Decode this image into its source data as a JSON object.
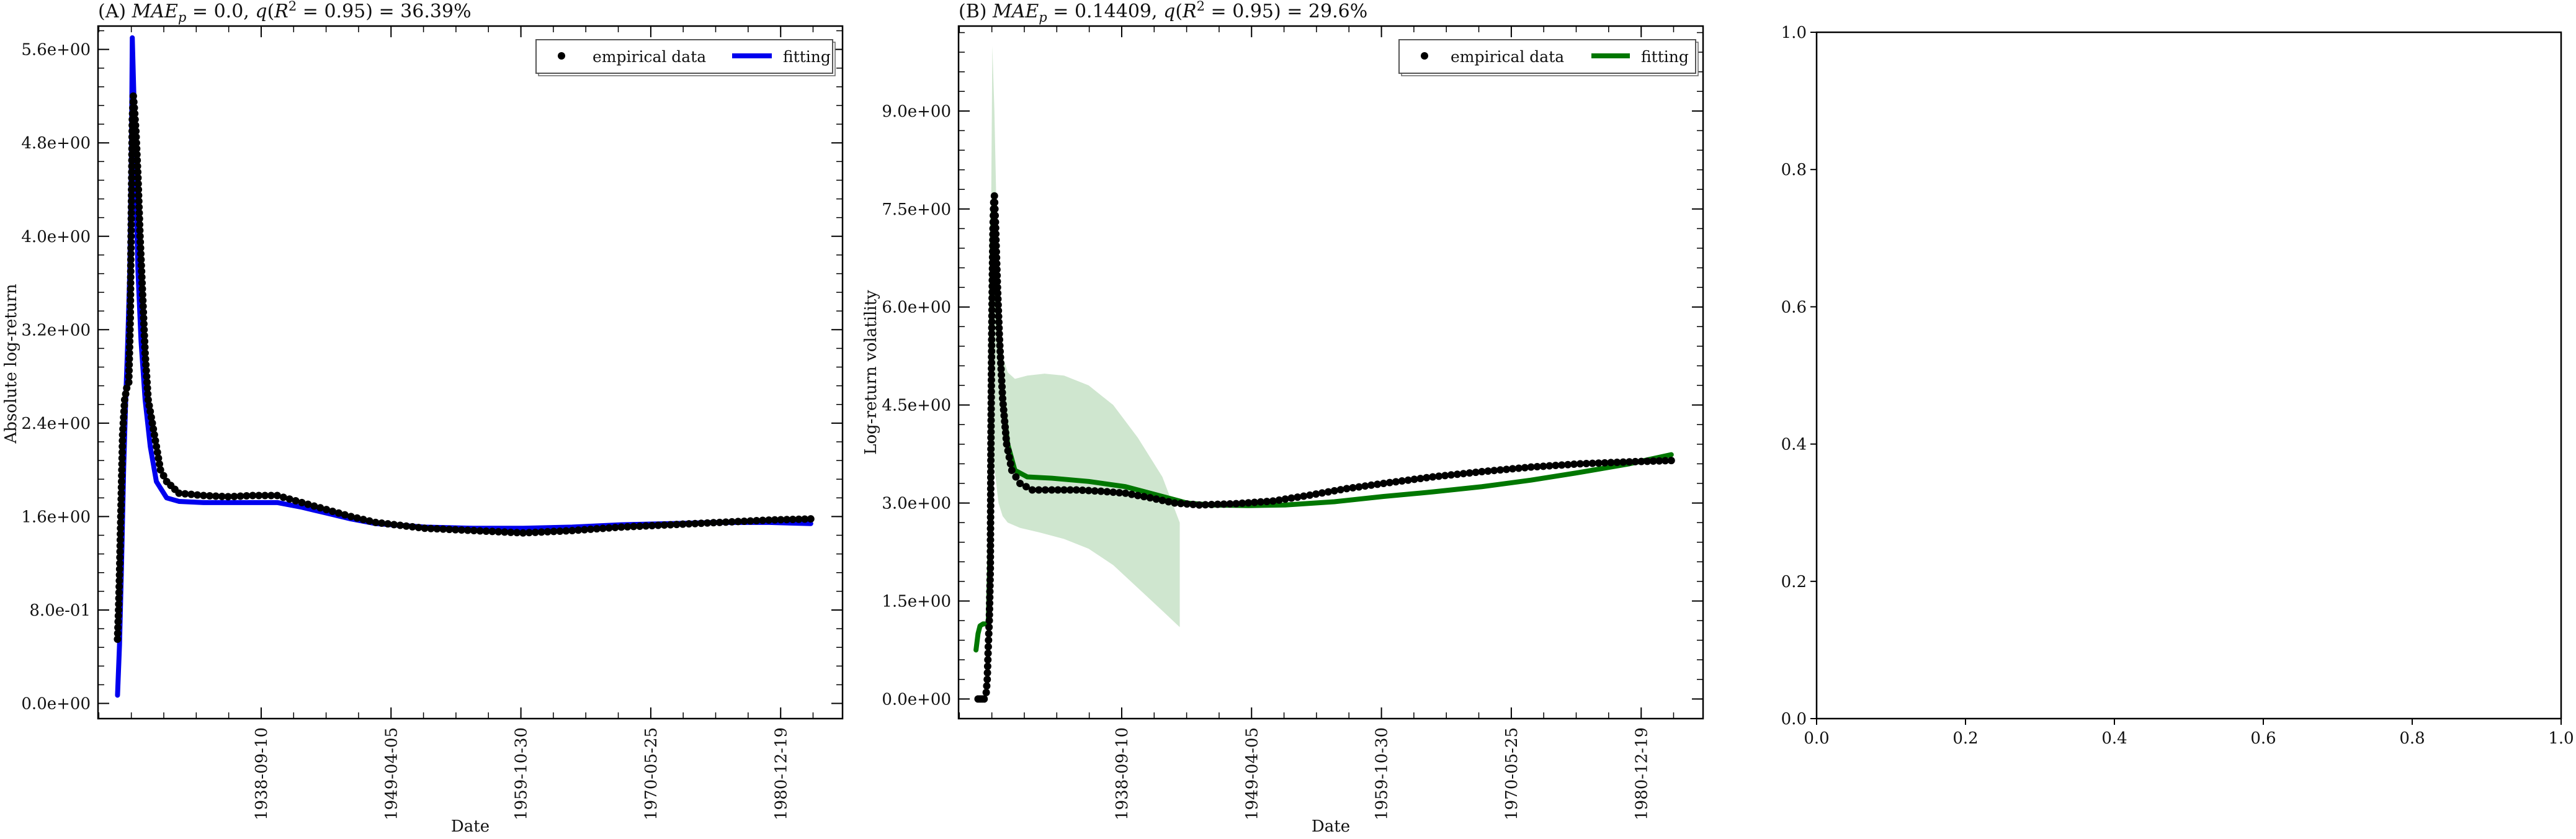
{
  "figure": {
    "background": "#ffffff",
    "panel_a_title": "(A) MAE_p = 0.0, q(R² = 0.95) = 36.39%",
    "panel_b_title": "(B) MAE_p = 0.14409, q(R² = 0.95) = 29.6%"
  },
  "chart_data": [
    {
      "type": "line",
      "title": "(A) MAE_p = 0.0, q(R² = 0.95) = 36.39%",
      "xlabel": "Date",
      "ylabel": "Absolute log-return",
      "x_ticks": [
        "1938-09-10",
        "1949-04-05",
        "1959-10-30",
        "1970-05-25",
        "1980-12-19"
      ],
      "y_ticks": [
        "0.0e+00",
        "8.0e-01",
        "1.6e+00",
        "2.4e+00",
        "3.2e+00",
        "4.0e+00",
        "4.8e+00",
        "5.6e+00"
      ],
      "ylim": [
        -0.13,
        5.8
      ],
      "xlim": [
        "1925-06-01",
        "1986-01-01"
      ],
      "grid": false,
      "legend_position": "top-right",
      "series": [
        {
          "name": "empirical data",
          "style": "scatter",
          "color": "#000000",
          "points": [
            [
              "1927-01-01",
              0.55
            ],
            [
              "1927-02-01",
              0.8
            ],
            [
              "1927-03-01",
              1.1
            ],
            [
              "1927-04-01",
              1.5
            ],
            [
              "1927-05-01",
              1.9
            ],
            [
              "1927-06-01",
              2.3
            ],
            [
              "1927-08-01",
              2.6
            ],
            [
              "1927-10-01",
              2.7
            ],
            [
              "1927-12-01",
              2.75
            ],
            [
              "1928-01-15",
              3.3
            ],
            [
              "1928-02-15",
              4.2
            ],
            [
              "1928-03-15",
              5.0
            ],
            [
              "1928-04-15",
              5.2
            ],
            [
              "1928-05-15",
              5.1
            ],
            [
              "1928-07-01",
              4.9
            ],
            [
              "1928-09-01",
              4.5
            ],
            [
              "1928-11-01",
              4.0
            ],
            [
              "1929-01-01",
              3.6
            ],
            [
              "1929-04-01",
              3.0
            ],
            [
              "1929-07-01",
              2.6
            ],
            [
              "1930-01-01",
              2.3
            ],
            [
              "1930-07-01",
              2.0
            ],
            [
              "1931-01-01",
              1.9
            ],
            [
              "1932-01-01",
              1.8
            ],
            [
              "1934-01-01",
              1.78
            ],
            [
              "1936-01-01",
              1.77
            ],
            [
              "1938-01-01",
              1.78
            ],
            [
              "1940-01-01",
              1.78
            ],
            [
              "1942-01-01",
              1.72
            ],
            [
              "1944-01-01",
              1.66
            ],
            [
              "1946-01-01",
              1.6
            ],
            [
              "1948-01-01",
              1.55
            ],
            [
              "1952-01-01",
              1.5
            ],
            [
              "1956-01-01",
              1.48
            ],
            [
              "1960-01-01",
              1.46
            ],
            [
              "1964-01-01",
              1.48
            ],
            [
              "1968-01-01",
              1.51
            ],
            [
              "1972-01-01",
              1.53
            ],
            [
              "1976-01-01",
              1.55
            ],
            [
              "1980-01-01",
              1.57
            ],
            [
              "1983-06-01",
              1.58
            ]
          ]
        },
        {
          "name": "fitting",
          "style": "line",
          "color": "#0000ee",
          "points": [
            [
              "1927-01-01",
              0.07
            ],
            [
              "1927-03-01",
              0.5
            ],
            [
              "1927-05-01",
              1.2
            ],
            [
              "1927-07-01",
              2.0
            ],
            [
              "1927-09-01",
              2.6
            ],
            [
              "1927-11-01",
              3.1
            ],
            [
              "1928-01-01",
              3.7
            ],
            [
              "1928-02-15",
              4.6
            ],
            [
              "1928-03-15",
              5.7
            ],
            [
              "1928-05-01",
              5.2
            ],
            [
              "1928-07-01",
              4.4
            ],
            [
              "1928-09-01",
              3.7
            ],
            [
              "1928-12-01",
              3.1
            ],
            [
              "1929-04-01",
              2.6
            ],
            [
              "1929-09-01",
              2.2
            ],
            [
              "1930-03-01",
              1.9
            ],
            [
              "1931-01-01",
              1.76
            ],
            [
              "1932-01-01",
              1.73
            ],
            [
              "1934-01-01",
              1.72
            ],
            [
              "1936-01-01",
              1.72
            ],
            [
              "1938-01-01",
              1.72
            ],
            [
              "1940-01-01",
              1.72
            ],
            [
              "1942-01-01",
              1.68
            ],
            [
              "1944-01-01",
              1.63
            ],
            [
              "1946-01-01",
              1.58
            ],
            [
              "1948-01-01",
              1.54
            ],
            [
              "1952-01-01",
              1.51
            ],
            [
              "1956-01-01",
              1.5
            ],
            [
              "1960-01-01",
              1.5
            ],
            [
              "1964-01-01",
              1.51
            ],
            [
              "1968-01-01",
              1.53
            ],
            [
              "1972-01-01",
              1.54
            ],
            [
              "1976-01-01",
              1.55
            ],
            [
              "1980-01-01",
              1.55
            ],
            [
              "1983-06-01",
              1.54
            ]
          ]
        }
      ]
    },
    {
      "type": "line",
      "title": "(B) MAE_p = 0.14409, q(R² = 0.95) = 29.6%",
      "xlabel": "Date",
      "ylabel": "Log-return volatility",
      "x_ticks": [
        "1938-09-10",
        "1949-04-05",
        "1959-10-30",
        "1970-05-25",
        "1980-12-19"
      ],
      "y_ticks": [
        "0.0e+00",
        "1.5e+00",
        "3.0e+00",
        "4.5e+00",
        "6.0e+00",
        "7.5e+00",
        "9.0e+00"
      ],
      "ylim": [
        -0.3,
        10.3
      ],
      "xlim": [
        "1925-06-01",
        "1986-01-01"
      ],
      "grid": false,
      "legend_position": "top-right",
      "series": [
        {
          "name": "empirical data",
          "style": "scatter",
          "color": "#000000",
          "points": [
            [
              "1927-01-01",
              0.0
            ],
            [
              "1927-03-01",
              0.0
            ],
            [
              "1927-05-01",
              0.0
            ],
            [
              "1927-07-01",
              0.0
            ],
            [
              "1927-09-01",
              0.1
            ],
            [
              "1927-10-01",
              0.3
            ],
            [
              "1927-11-01",
              0.8
            ],
            [
              "1927-12-01",
              1.2
            ],
            [
              "1928-01-01",
              2.0
            ],
            [
              "1928-01-20",
              4.0
            ],
            [
              "1928-02-10",
              5.5
            ],
            [
              "1928-03-01",
              6.5
            ],
            [
              "1928-03-20",
              7.2
            ],
            [
              "1928-04-10",
              7.6
            ],
            [
              "1928-05-01",
              7.7
            ],
            [
              "1928-06-01",
              7.3
            ],
            [
              "1928-08-01",
              6.3
            ],
            [
              "1928-10-01",
              5.5
            ],
            [
              "1929-01-01",
              4.6
            ],
            [
              "1929-05-01",
              3.9
            ],
            [
              "1929-10-01",
              3.5
            ],
            [
              "1930-06-01",
              3.3
            ],
            [
              "1931-06-01",
              3.2
            ],
            [
              "1933-01-01",
              3.2
            ],
            [
              "1935-01-01",
              3.2
            ],
            [
              "1937-01-01",
              3.18
            ],
            [
              "1939-01-01",
              3.15
            ],
            [
              "1941-01-01",
              3.08
            ],
            [
              "1943-01-01",
              3.0
            ],
            [
              "1945-01-01",
              2.97
            ],
            [
              "1948-01-01",
              2.99
            ],
            [
              "1951-01-01",
              3.03
            ],
            [
              "1954-01-01",
              3.12
            ],
            [
              "1957-01-01",
              3.22
            ],
            [
              "1960-01-01",
              3.3
            ],
            [
              "1964-01-01",
              3.4
            ],
            [
              "1968-01-01",
              3.48
            ],
            [
              "1972-01-01",
              3.55
            ],
            [
              "1976-01-01",
              3.6
            ],
            [
              "1980-01-01",
              3.63
            ],
            [
              "1983-06-01",
              3.65
            ]
          ]
        },
        {
          "name": "fitting",
          "style": "line",
          "color": "#007700",
          "points": [
            [
              "1926-11-01",
              0.75
            ],
            [
              "1927-01-01",
              1.0
            ],
            [
              "1927-03-01",
              1.12
            ],
            [
              "1927-06-01",
              1.15
            ],
            [
              "1927-09-01",
              1.15
            ],
            [
              "1927-11-01",
              1.15
            ],
            [
              "1928-01-01",
              2.5
            ],
            [
              "1928-02-01",
              5.5
            ],
            [
              "1928-03-01",
              7.0
            ],
            [
              "1928-04-01",
              7.5
            ],
            [
              "1928-05-01",
              7.6
            ],
            [
              "1928-07-01",
              6.6
            ],
            [
              "1928-09-01",
              5.8
            ],
            [
              "1929-01-01",
              4.6
            ],
            [
              "1929-06-01",
              3.9
            ],
            [
              "1930-01-01",
              3.5
            ],
            [
              "1931-01-01",
              3.4
            ],
            [
              "1933-01-01",
              3.38
            ],
            [
              "1936-01-01",
              3.33
            ],
            [
              "1939-01-01",
              3.25
            ],
            [
              "1942-01-01",
              3.1
            ],
            [
              "1944-01-01",
              3.0
            ],
            [
              "1946-01-01",
              2.97
            ],
            [
              "1949-01-01",
              2.96
            ],
            [
              "1952-01-01",
              2.97
            ],
            [
              "1956-01-01",
              3.02
            ],
            [
              "1960-01-01",
              3.1
            ],
            [
              "1964-01-01",
              3.17
            ],
            [
              "1968-01-01",
              3.25
            ],
            [
              "1972-01-01",
              3.35
            ],
            [
              "1976-01-01",
              3.47
            ],
            [
              "1980-01-01",
              3.6
            ],
            [
              "1983-06-01",
              3.74
            ]
          ]
        },
        {
          "name": "",
          "style": "band",
          "color": "#cfe6cf",
          "upper": [
            [
              "1928-01-01",
              6.0
            ],
            [
              "1928-02-01",
              8.0
            ],
            [
              "1928-03-01",
              10.0
            ],
            [
              "1928-05-01",
              9.0
            ],
            [
              "1928-07-01",
              7.5
            ],
            [
              "1928-10-01",
              6.0
            ],
            [
              "1929-02-01",
              5.2
            ],
            [
              "1929-06-01",
              5.0
            ],
            [
              "1930-01-01",
              4.9
            ],
            [
              "1931-01-01",
              4.95
            ],
            [
              "1932-06-01",
              4.98
            ],
            [
              "1934-01-01",
              4.95
            ],
            [
              "1936-01-01",
              4.8
            ],
            [
              "1938-01-01",
              4.5
            ],
            [
              "1940-01-01",
              4.0
            ],
            [
              "1942-01-01",
              3.4
            ],
            [
              "1943-06-01",
              2.7
            ]
          ],
          "lower": [
            [
              "1928-01-01",
              3.6
            ],
            [
              "1928-03-01",
              3.8
            ],
            [
              "1928-06-01",
              3.4
            ],
            [
              "1928-09-01",
              3.0
            ],
            [
              "1929-01-01",
              2.8
            ],
            [
              "1929-06-01",
              2.7
            ],
            [
              "1930-06-01",
              2.62
            ],
            [
              "1932-01-01",
              2.55
            ],
            [
              "1934-01-01",
              2.45
            ],
            [
              "1936-01-01",
              2.3
            ],
            [
              "1938-01-01",
              2.05
            ],
            [
              "1940-01-01",
              1.7
            ],
            [
              "1942-01-01",
              1.35
            ],
            [
              "1943-06-01",
              1.1
            ]
          ]
        }
      ]
    },
    {
      "type": "line",
      "title": "",
      "xlabel": "",
      "ylabel": "",
      "x_ticks": [
        "0.0",
        "0.2",
        "0.4",
        "0.6",
        "0.8",
        "1.0"
      ],
      "y_ticks": [
        "0.0",
        "0.2",
        "0.4",
        "0.6",
        "0.8",
        "1.0"
      ],
      "xlim": [
        0,
        1
      ],
      "ylim": [
        0,
        1
      ],
      "series": []
    }
  ]
}
